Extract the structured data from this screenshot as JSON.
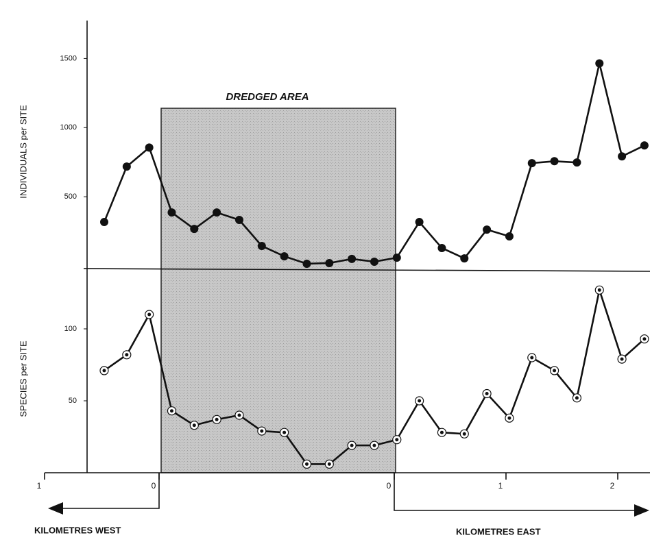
{
  "chart_data": [
    {
      "type": "line",
      "ylabel": "INDIVIDUALS per SITE",
      "ylim": [
        0,
        1750
      ],
      "yticks": [
        500,
        1000,
        1500
      ],
      "marker": "filled",
      "color": "#111111",
      "categories": [
        null,
        null,
        null,
        null,
        null,
        null,
        null,
        null,
        null,
        null,
        null,
        null,
        null,
        null,
        null,
        null,
        null,
        null,
        null,
        null,
        null,
        null,
        null,
        null,
        null
      ],
      "values": [
        317,
        718,
        856,
        386,
        267,
        386,
        332,
        144,
        69,
        15,
        20,
        50,
        30,
        59,
        317,
        129,
        54,
        262,
        213,
        743,
        757,
        748,
        1465,
        792,
        871
      ]
    },
    {
      "type": "line",
      "ylabel": "SPECIES per SITE",
      "ylim": [
        0,
        140
      ],
      "yticks": [
        50,
        100
      ],
      "marker": "open",
      "color": "#111111",
      "categories": [
        null,
        null,
        null,
        null,
        null,
        null,
        null,
        null,
        null,
        null,
        null,
        null,
        null,
        null,
        null,
        null,
        null,
        null,
        null,
        null,
        null,
        null,
        null,
        null,
        null
      ],
      "values": [
        71,
        82,
        110,
        43,
        33,
        37,
        40,
        29,
        28,
        6,
        6,
        19,
        19,
        23,
        50,
        28,
        27,
        55,
        38,
        80,
        71,
        52,
        127,
        79,
        93
      ]
    }
  ],
  "dredged_area": {
    "label": "DREDGED AREA"
  },
  "distance_axis": {
    "west_label": "KILOMETRES WEST",
    "east_label": "KILOMETRES EAST",
    "west_ticks": [
      1,
      0
    ],
    "east_ticks": [
      0,
      1,
      2
    ]
  }
}
